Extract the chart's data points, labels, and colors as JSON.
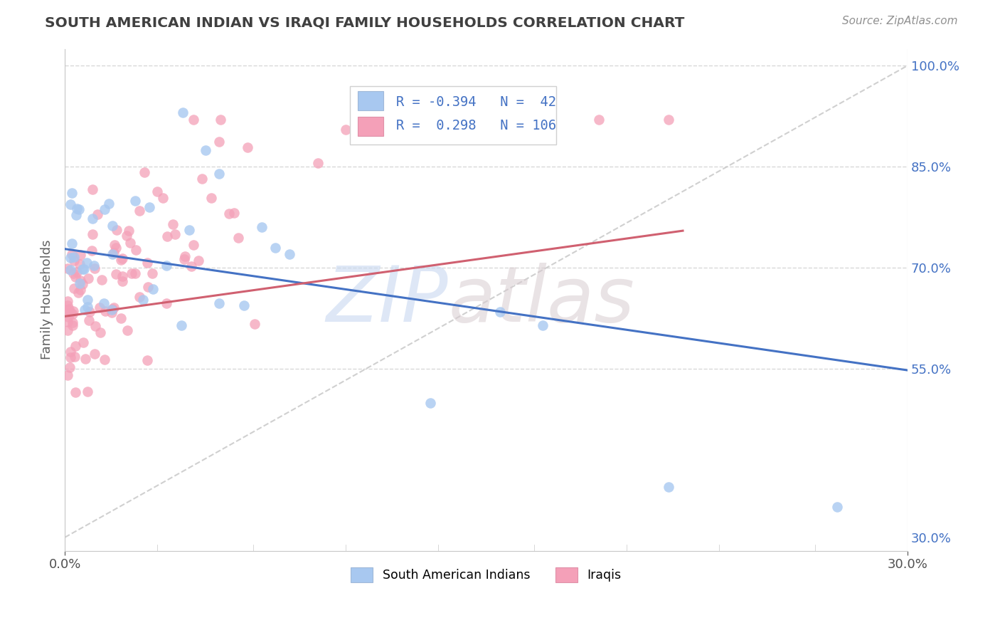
{
  "title": "SOUTH AMERICAN INDIAN VS IRAQI FAMILY HOUSEHOLDS CORRELATION CHART",
  "source_text": "Source: ZipAtlas.com",
  "ylabel": "Family Households",
  "blue_color": "#a8c8f0",
  "pink_color": "#f4a0b8",
  "blue_line_color": "#4472c4",
  "pink_line_color": "#d06070",
  "ref_line_color": "#c8c8c8",
  "title_color": "#404040",
  "source_color": "#909090",
  "grid_color": "#d8d8d8",
  "legend_text_color": "#4472c4",
  "xlim": [
    0.0,
    0.3
  ],
  "ylim": [
    0.28,
    1.025
  ],
  "yticks": [
    1.0,
    0.85,
    0.7,
    0.55,
    0.3
  ],
  "ytick_labels": [
    "100.0%",
    "85.0%",
    "70.0%",
    "55.0%",
    "30.0%"
  ],
  "xticks": [
    0.0,
    0.3
  ],
  "xtick_labels": [
    "0.0%",
    "30.0%"
  ],
  "blue_line": [
    0.0,
    0.728,
    0.3,
    0.548
  ],
  "pink_line": [
    0.0,
    0.628,
    0.22,
    0.755
  ],
  "ref_line": [
    0.0,
    0.3,
    0.3,
    1.0
  ]
}
